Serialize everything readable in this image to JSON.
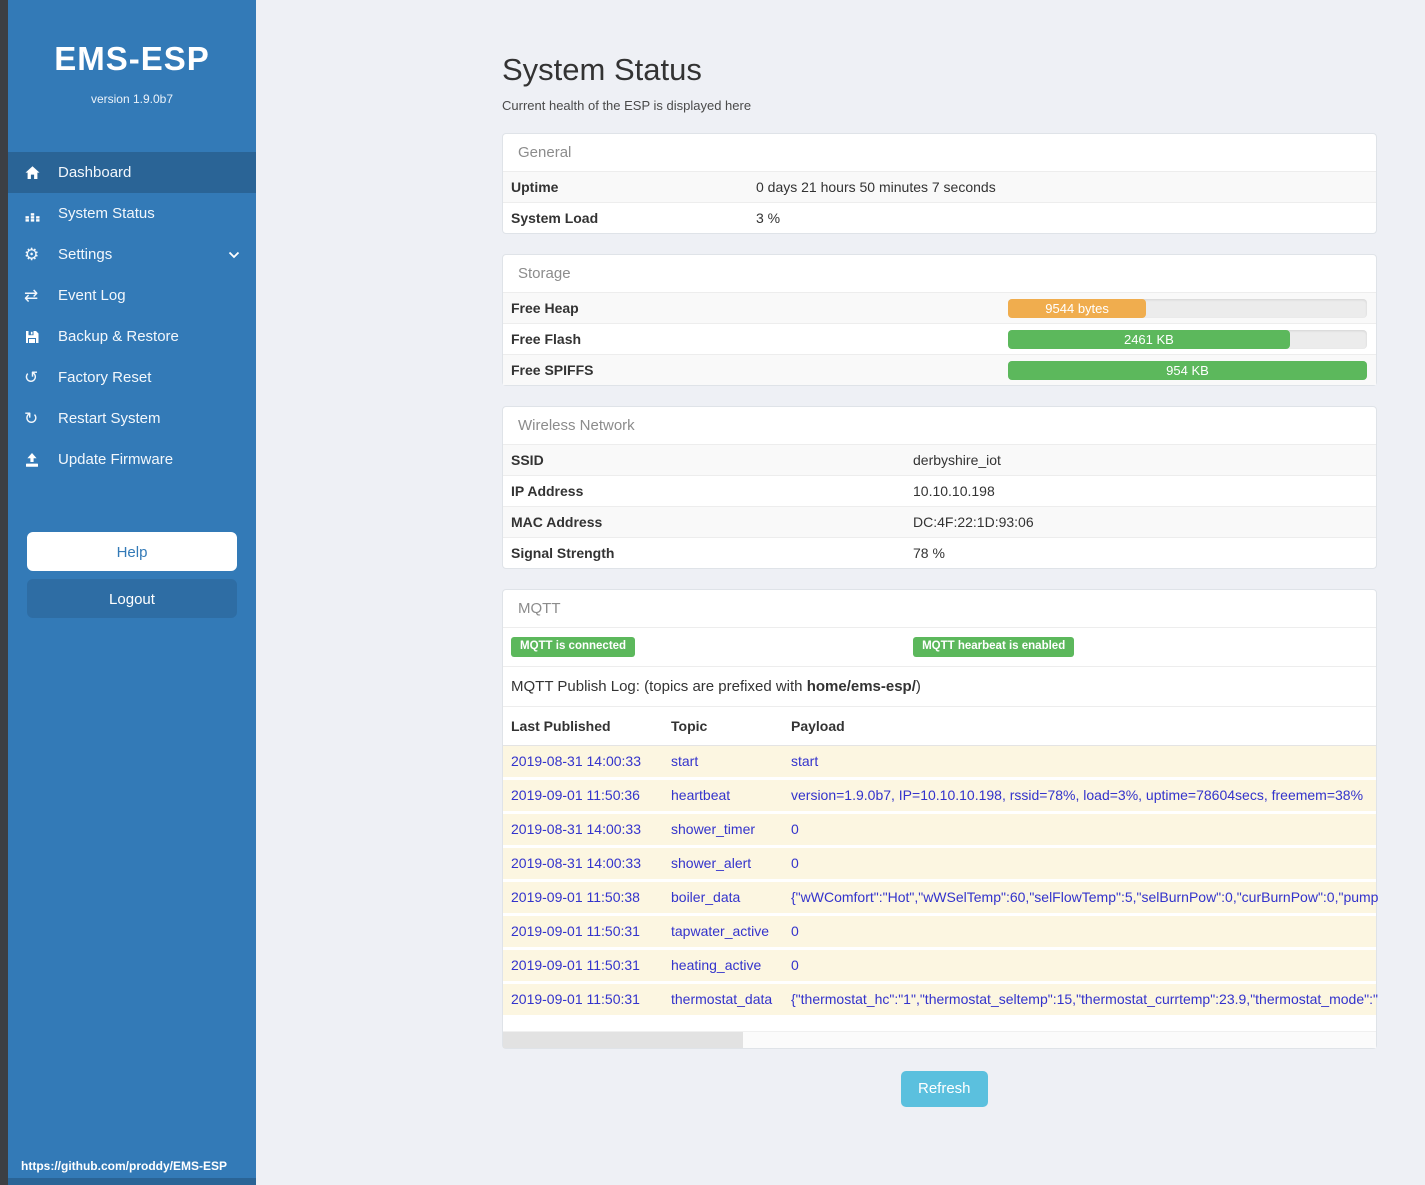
{
  "colors": {
    "sidebar": "#337ab7",
    "sidebar_active": "#2a6496",
    "success_green": "#5cb85c",
    "warning_orange": "#f0ad4e",
    "info_blue": "#5bc0de",
    "log_text_blue": "#3333cc"
  },
  "sidebar": {
    "title": "EMS-ESP",
    "version": "version 1.9.0b7",
    "items": [
      {
        "label": "Dashboard"
      },
      {
        "label": "System Status"
      },
      {
        "label": "Settings"
      },
      {
        "label": "Event Log"
      },
      {
        "label": "Backup & Restore"
      },
      {
        "label": "Factory Reset"
      },
      {
        "label": "Restart System"
      },
      {
        "label": "Update Firmware"
      }
    ],
    "help_label": "Help",
    "logout_label": "Logout",
    "footer_link": "https://github.com/proddy/EMS-ESP"
  },
  "main": {
    "title": "System Status",
    "subtitle": "Current health of the ESP is displayed here",
    "general": {
      "title": "General",
      "rows": [
        {
          "label": "Uptime",
          "value": "0 days 21 hours 50 minutes 7 seconds"
        },
        {
          "label": "System Load",
          "value": "3 %"
        }
      ]
    },
    "storage": {
      "title": "Storage",
      "rows": [
        {
          "label": "Free Heap",
          "bar_label": "9544 bytes",
          "percent": 38.5,
          "color": "#f0ad4e"
        },
        {
          "label": "Free Flash",
          "bar_label": "2461 KB",
          "percent": 78.5,
          "color": "#5cb85c"
        },
        {
          "label": "Free SPIFFS",
          "bar_label": "954 KB",
          "percent": 100,
          "color": "#5cb85c"
        }
      ]
    },
    "wireless": {
      "title": "Wireless Network",
      "rows": [
        {
          "label": "SSID",
          "value": "derbyshire_iot"
        },
        {
          "label": "IP Address",
          "value": "10.10.10.198"
        },
        {
          "label": "MAC Address",
          "value": "DC:4F:22:1D:93:06"
        },
        {
          "label": "Signal Strength",
          "value": "78 %"
        }
      ]
    },
    "mqtt": {
      "title": "MQTT",
      "badges": [
        "MQTT is connected",
        "MQTT hearbeat is enabled"
      ],
      "publish_log_prefix": "MQTT Publish Log: (topics are prefixed with ",
      "publish_log_bold": "home/ems-esp/",
      "publish_log_suffix": ")",
      "table": {
        "headers": [
          "Last Published",
          "Topic",
          "Payload"
        ],
        "rows": [
          [
            "2019-08-31 14:00:33",
            "start",
            "start"
          ],
          [
            "2019-09-01 11:50:36",
            "heartbeat",
            "version=1.9.0b7, IP=10.10.10.198, rssid=78%, load=3%, uptime=78604secs, freemem=38%"
          ],
          [
            "2019-08-31 14:00:33",
            "shower_timer",
            "0"
          ],
          [
            "2019-08-31 14:00:33",
            "shower_alert",
            "0"
          ],
          [
            "2019-09-01 11:50:38",
            "boiler_data",
            "{\"wWComfort\":\"Hot\",\"wWSelTemp\":60,\"selFlowTemp\":5,\"selBurnPow\":0,\"curBurnPow\":0,\"pump"
          ],
          [
            "2019-09-01 11:50:31",
            "tapwater_active",
            "0"
          ],
          [
            "2019-09-01 11:50:31",
            "heating_active",
            "0"
          ],
          [
            "2019-09-01 11:50:31",
            "thermostat_data",
            "{\"thermostat_hc\":\"1\",\"thermostat_seltemp\":15,\"thermostat_currtemp\":23.9,\"thermostat_mode\":\""
          ]
        ]
      }
    },
    "refresh_label": "Refresh"
  }
}
